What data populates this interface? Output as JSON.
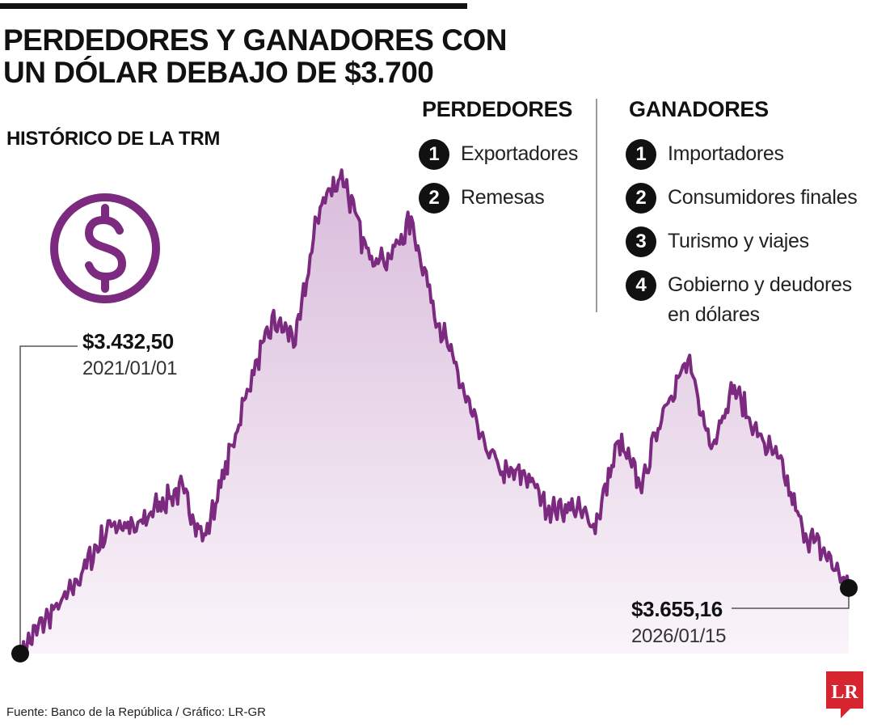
{
  "header": {
    "title_line1": "PERDEDORES Y GANADORES CON",
    "title_line2": "UN DÓLAR DEBAJO DE $3.700",
    "subtitle": "HISTÓRICO DE LA TRM"
  },
  "icons": {
    "dollar": "dollar-circle-icon",
    "logo": "lr-logo"
  },
  "colors": {
    "line": "#7B2A7F",
    "fill_top": "#D9BCDB",
    "fill_bottom": "#F8F2F8",
    "text": "#111111",
    "logo": "#D6252E"
  },
  "perdedores": {
    "heading": "PERDEDORES",
    "items": [
      {
        "num": "1",
        "label": "Exportadores"
      },
      {
        "num": "2",
        "label": "Remesas"
      }
    ]
  },
  "ganadores": {
    "heading": "GANADORES",
    "items": [
      {
        "num": "1",
        "label": "Importadores"
      },
      {
        "num": "2",
        "label": "Consumidores finales"
      },
      {
        "num": "3",
        "label": "Turismo y viajes"
      },
      {
        "num": "4",
        "label": "Gobierno y deudores en dólares"
      }
    ]
  },
  "chart_data": {
    "type": "area",
    "title": "HISTÓRICO DE LA TRM",
    "xlabel": "",
    "ylabel": "",
    "grid": false,
    "x": [
      "2021/01/01",
      "2021/02",
      "2021/04",
      "2021/06",
      "2021/08",
      "2021/09",
      "2021/11",
      "2022/01",
      "2022/03",
      "2022/05",
      "2022/07",
      "2022/08",
      "2022/09",
      "2022/10",
      "2022/11",
      "2022/12",
      "2023/01",
      "2023/03",
      "2023/04",
      "2023/05",
      "2023/06",
      "2023/08",
      "2023/10",
      "2023/12",
      "2024/02",
      "2024/04",
      "2024/06",
      "2024/08",
      "2024/10",
      "2024/12",
      "2025/02",
      "2025/04",
      "2025/06",
      "2025/08",
      "2025/10",
      "2025/12",
      "2026/01/15"
    ],
    "values": [
      3432.5,
      3540,
      3620,
      3750,
      3880,
      3850,
      3940,
      3990,
      3820,
      4080,
      4360,
      4560,
      4500,
      4950,
      5060,
      4800,
      4770,
      4900,
      4600,
      4380,
      4160,
      4040,
      4040,
      3920,
      3930,
      3870,
      4150,
      4000,
      4280,
      4420,
      4140,
      4340,
      4180,
      4080,
      3850,
      3770,
      3655.16
    ],
    "annotations": [
      {
        "value_label": "$3.432,50",
        "date_label": "2021/01/01"
      },
      {
        "value_label": "$3.655,16",
        "date_label": "2026/01/15"
      }
    ]
  },
  "footer": {
    "source": "Fuente: Banco de la República / Gráfico: LR-GR",
    "logo_text": "LR"
  }
}
